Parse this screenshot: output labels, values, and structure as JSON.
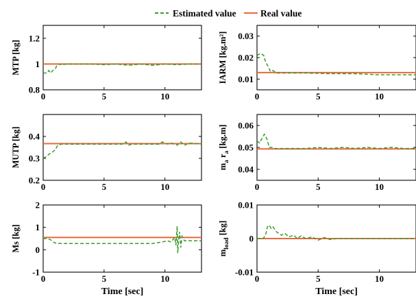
{
  "legend": {
    "items": [
      {
        "label": "Estimated value",
        "color": "#3a9a2a",
        "style": "dashed"
      },
      {
        "label": "Real value",
        "color": "#e8683a",
        "style": "solid"
      }
    ]
  },
  "chart_data": [
    {
      "type": "line",
      "ylabel": "MTP [kg]",
      "xlabel": "",
      "xlim": [
        0,
        13
      ],
      "ylim": [
        0.8,
        1.3
      ],
      "xticks": [
        0,
        5,
        10
      ],
      "xtick_labels": [
        "0",
        "5",
        "10"
      ],
      "yticks": [
        0.8,
        1,
        1.2
      ],
      "ytick_labels": [
        "0.8",
        "1",
        "1.2"
      ],
      "series": [
        {
          "name": "Estimated value",
          "x": [
            0,
            0.3,
            0.45,
            0.6,
            0.9,
            1.0,
            1.2,
            1.5,
            2.0,
            3.0,
            4.0,
            5.0,
            6.0,
            7.0,
            8.0,
            9.0,
            10.0,
            11.0,
            12.0,
            13.0
          ],
          "y": [
            0.93,
            0.93,
            0.95,
            0.93,
            0.96,
            0.965,
            1.0,
            0.995,
            1.0,
            1.0,
            1.0,
            0.995,
            1.0,
            0.99,
            1.0,
            0.99,
            1.0,
            0.995,
            1.0,
            1.0
          ]
        },
        {
          "name": "Real value",
          "x": [
            0,
            13
          ],
          "y": [
            1,
            1
          ]
        }
      ]
    },
    {
      "type": "line",
      "ylabel": "IARM [kg.m²]",
      "xlabel": "",
      "xlim": [
        0,
        13
      ],
      "ylim": [
        0.005,
        0.035
      ],
      "xticks": [
        0,
        5,
        10
      ],
      "xtick_labels": [
        "0",
        "5",
        "10"
      ],
      "yticks": [
        0.01,
        0.02,
        0.03
      ],
      "ytick_labels": [
        "0.01",
        "0.02",
        "0.03"
      ],
      "series": [
        {
          "name": "Estimated value",
          "x": [
            0,
            0.3,
            0.55,
            0.7,
            0.9,
            1.1,
            1.3,
            1.6,
            2.0,
            4.0,
            6.0,
            8.0,
            10.0,
            12.0,
            13.0
          ],
          "y": [
            0.021,
            0.022,
            0.021,
            0.018,
            0.016,
            0.0135,
            0.014,
            0.0128,
            0.0128,
            0.0128,
            0.0125,
            0.0125,
            0.012,
            0.012,
            0.012
          ]
        },
        {
          "name": "Real value",
          "x": [
            0,
            13
          ],
          "y": [
            0.013,
            0.013
          ]
        }
      ]
    },
    {
      "type": "line",
      "ylabel": "MUTP [kg]",
      "xlabel": "",
      "xlim": [
        0,
        13
      ],
      "ylim": [
        0.2,
        0.5
      ],
      "xticks": [
        0,
        5,
        10
      ],
      "xtick_labels": [
        "0",
        "5",
        "10"
      ],
      "yticks": [
        0.2,
        0.3,
        0.4
      ],
      "ytick_labels": [
        "0.2",
        "0.3",
        "0.4"
      ],
      "series": [
        {
          "name": "Estimated value",
          "x": [
            0,
            0.3,
            0.5,
            0.8,
            1.0,
            1.2,
            1.5,
            2.0,
            4.0,
            6.5,
            6.8,
            7.0,
            7.3,
            8.0,
            9.5,
            9.8,
            10.2,
            10.5,
            11.0,
            11.3,
            11.6,
            12.0,
            13.0
          ],
          "y": [
            0.3,
            0.31,
            0.32,
            0.33,
            0.34,
            0.36,
            0.365,
            0.365,
            0.365,
            0.365,
            0.375,
            0.36,
            0.365,
            0.365,
            0.365,
            0.375,
            0.365,
            0.37,
            0.36,
            0.375,
            0.36,
            0.37,
            0.365
          ]
        },
        {
          "name": "Real value",
          "x": [
            0,
            13
          ],
          "y": [
            0.367,
            0.367
          ]
        }
      ]
    },
    {
      "type": "line",
      "ylabel_main": "m",
      "ylabel_sub1": "a",
      "ylabel_mid": " r",
      "ylabel_sub2": "a",
      "ylabel_tail": " [kg.m]",
      "xlabel": "",
      "xlim": [
        0,
        13
      ],
      "ylim": [
        0.035,
        0.065
      ],
      "xticks": [
        0,
        5,
        10
      ],
      "xtick_labels": [
        "0",
        "5",
        "10"
      ],
      "yticks": [
        0.04,
        0.05,
        0.06
      ],
      "ytick_labels": [
        "0.04",
        "0.05",
        "0.06"
      ],
      "series": [
        {
          "name": "Estimated value",
          "x": [
            0,
            0.2,
            0.4,
            0.6,
            0.8,
            1.0,
            1.2,
            1.5,
            2.0,
            3.0,
            4.0,
            5.0,
            6.0,
            7.0,
            8.0,
            9.0,
            10.0,
            11.0,
            12.0,
            13.0
          ],
          "y": [
            0.053,
            0.052,
            0.054,
            0.056,
            0.054,
            0.05,
            0.05,
            0.0495,
            0.0495,
            0.0495,
            0.0495,
            0.05,
            0.0495,
            0.05,
            0.0495,
            0.05,
            0.0495,
            0.05,
            0.0495,
            0.0495
          ]
        },
        {
          "name": "Real value",
          "x": [
            0,
            13
          ],
          "y": [
            0.0493,
            0.0493
          ]
        }
      ]
    },
    {
      "type": "line",
      "ylabel": "Ms [kg]",
      "xlabel": "Time [sec]",
      "xlim": [
        0,
        13
      ],
      "ylim": [
        -1,
        2
      ],
      "xticks": [
        0,
        5,
        10
      ],
      "xtick_labels": [
        "0",
        "5",
        "10"
      ],
      "yticks": [
        -1,
        0,
        1,
        2
      ],
      "ytick_labels": [
        "-1",
        "0",
        "1",
        "2"
      ],
      "series": [
        {
          "name": "Estimated value",
          "x": [
            0,
            0.3,
            0.6,
            0.8,
            1.0,
            1.5,
            3.0,
            5.0,
            7.0,
            9.0,
            9.8,
            10.2,
            10.5,
            10.8,
            10.9,
            11.0,
            11.05,
            11.1,
            11.2,
            11.3,
            11.4,
            11.6,
            12.0,
            13.0
          ],
          "y": [
            0.5,
            0.5,
            0.45,
            0.35,
            0.3,
            0.28,
            0.28,
            0.28,
            0.28,
            0.28,
            0.35,
            0.4,
            0.35,
            0.55,
            0.2,
            1.05,
            -0.15,
            0.3,
            0.8,
            0.1,
            0.6,
            0.4,
            0.4,
            0.4
          ]
        },
        {
          "name": "Real value",
          "x": [
            0,
            13
          ],
          "y": [
            0.55,
            0.55
          ]
        }
      ]
    },
    {
      "type": "line",
      "ylabel_main": "m",
      "ylabel_sub1": "load",
      "ylabel_tail": " [kg]",
      "xlabel": "Time [sec]",
      "xlim": [
        0,
        13
      ],
      "ylim": [
        -0.01,
        0.01
      ],
      "xticks": [
        0,
        5,
        10
      ],
      "xtick_labels": [
        "0",
        "5",
        "10"
      ],
      "yticks": [
        -0.01,
        0,
        0.01
      ],
      "ytick_labels": [
        "-0.01",
        "0",
        "0.01"
      ],
      "series": [
        {
          "name": "Estimated value",
          "x": [
            0,
            0.5,
            0.7,
            0.85,
            1.0,
            1.15,
            1.3,
            1.6,
            2.0,
            2.3,
            2.6,
            3.0,
            3.3,
            3.6,
            4.0,
            4.5,
            5.0,
            5.5,
            6.0,
            6.5,
            7.0,
            8.0,
            13.0
          ],
          "y": [
            0,
            0,
            0.001,
            0.0035,
            0.004,
            0.003,
            0.0035,
            0.002,
            0.001,
            0.0015,
            0.0005,
            0.001,
            0.0,
            0.0008,
            0.0,
            0.0005,
            -0.0005,
            0.0003,
            -0.0003,
            0.0,
            0.0,
            0.0,
            0.0
          ]
        },
        {
          "name": "Real value",
          "x": [
            0,
            13
          ],
          "y": [
            0,
            0
          ]
        }
      ]
    }
  ]
}
